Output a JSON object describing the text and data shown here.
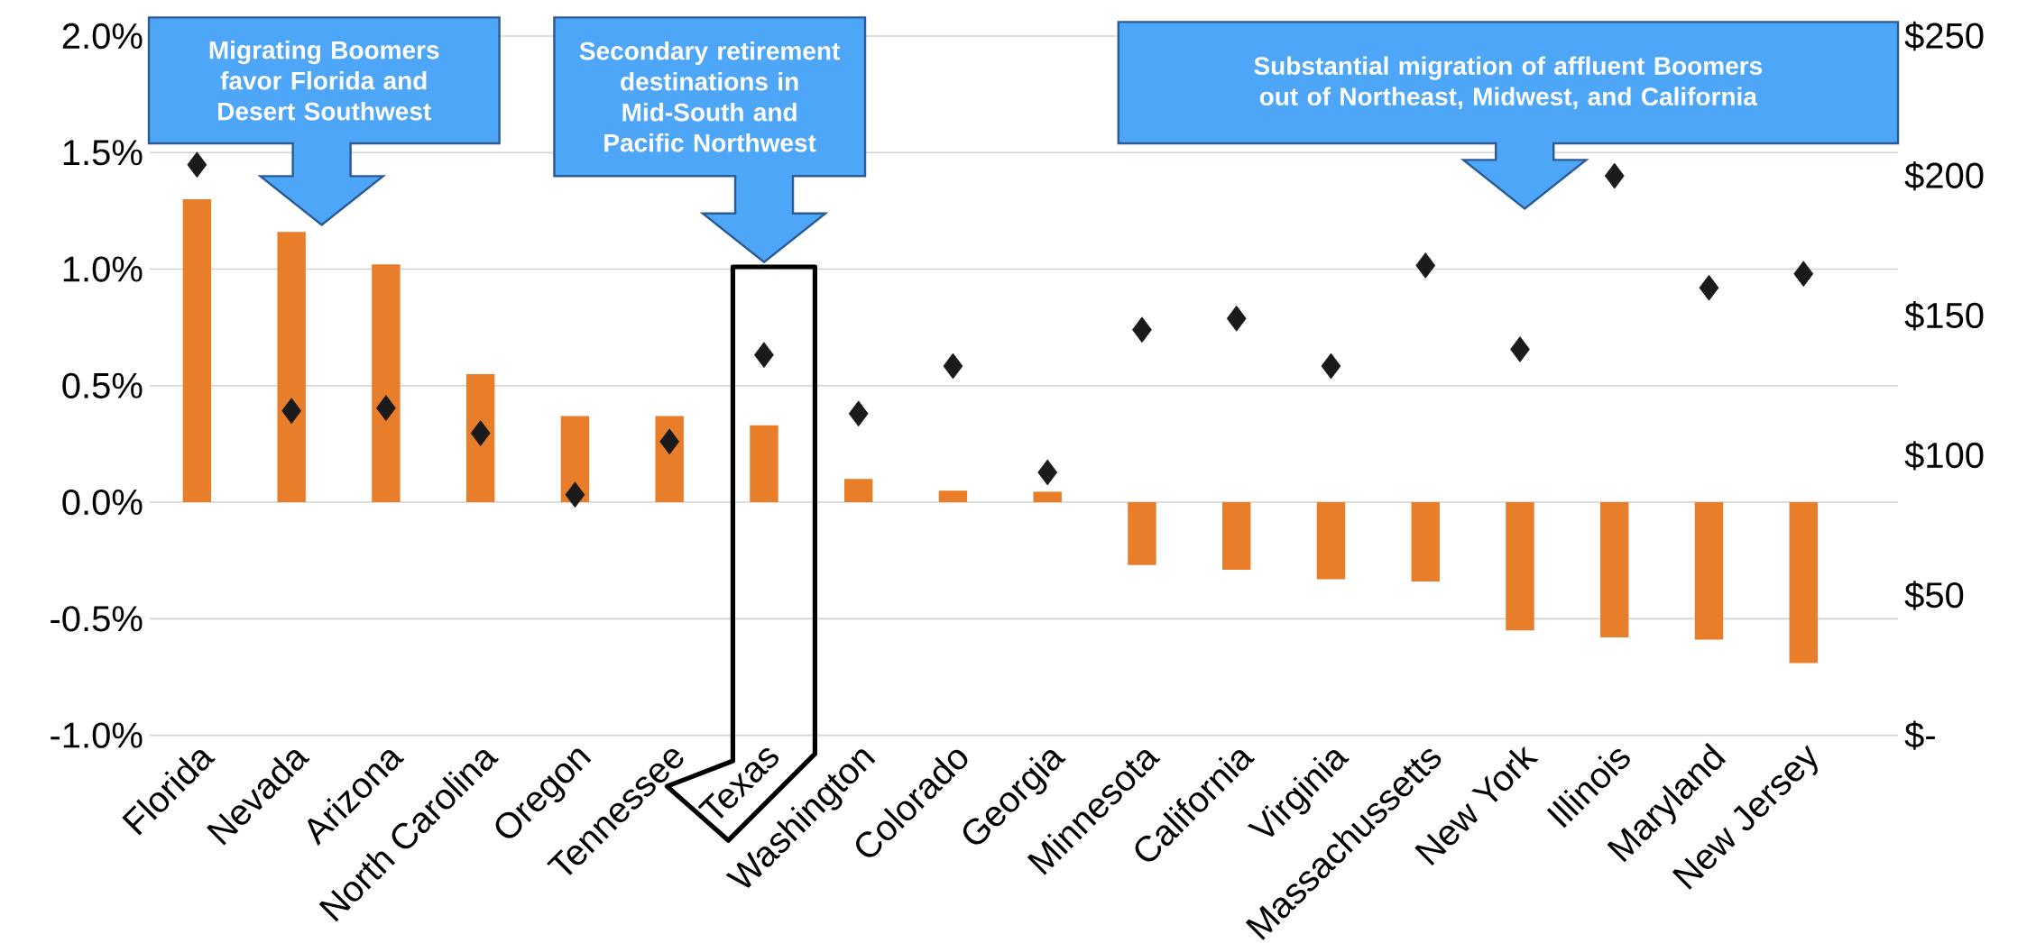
{
  "chart_data": {
    "type": "bar",
    "categories": [
      "Florida",
      "Nevada",
      "Arizona",
      "North Carolina",
      "Oregon",
      "Tennessee",
      "Texas",
      "Washington",
      "Colorado",
      "Georgia",
      "Minnesota",
      "California",
      "Virginia",
      "Massachussetts",
      "New York",
      "Illinois",
      "Maryland",
      "New Jersey"
    ],
    "series": [
      {
        "type": "bar",
        "color": "#e87d2a",
        "values": [
          1.3,
          1.16,
          1.02,
          0.55,
          0.37,
          0.37,
          0.33,
          0.1,
          0.05,
          0.045,
          -0.27,
          -0.29,
          -0.33,
          -0.34,
          -0.55,
          -0.58,
          -0.59,
          -0.69
        ]
      },
      {
        "type": "scatter",
        "axis": "y2",
        "color": "#1a1a1a",
        "marker": "diamond",
        "values": [
          204,
          116,
          117,
          108,
          86,
          105,
          136,
          115,
          132,
          94,
          145,
          149,
          132,
          168,
          138,
          200,
          160,
          165
        ]
      }
    ],
    "ylim": [
      -1.0,
      2.0
    ],
    "yticks": [
      {
        "value": -1.0,
        "label": "-1.0%"
      },
      {
        "value": -0.5,
        "label": "-0.5%"
      },
      {
        "value": 0.0,
        "label": "0.0%"
      },
      {
        "value": 0.5,
        "label": "0.5%"
      },
      {
        "value": 1.0,
        "label": "1.0%"
      },
      {
        "value": 1.5,
        "label": "1.5%"
      },
      {
        "value": 2.0,
        "label": "2.0%"
      }
    ],
    "y2lim": [
      0,
      250
    ],
    "y2ticks": [
      {
        "value": 0,
        "label": "$-"
      },
      {
        "value": 50,
        "label": "$50"
      },
      {
        "value": 100,
        "label": "$100"
      },
      {
        "value": 150,
        "label": "$150"
      },
      {
        "value": 200,
        "label": "$200"
      },
      {
        "value": 250,
        "label": "$250"
      }
    ],
    "grid": "y",
    "annotations": [
      "Migrating Boomers favor Florida and Desert Southwest",
      "Secondary retirement destinations in Mid-South and Pacific Northwest",
      "Substantial migration of affluent Boomers out of Northeast, Midwest, and California"
    ]
  }
}
